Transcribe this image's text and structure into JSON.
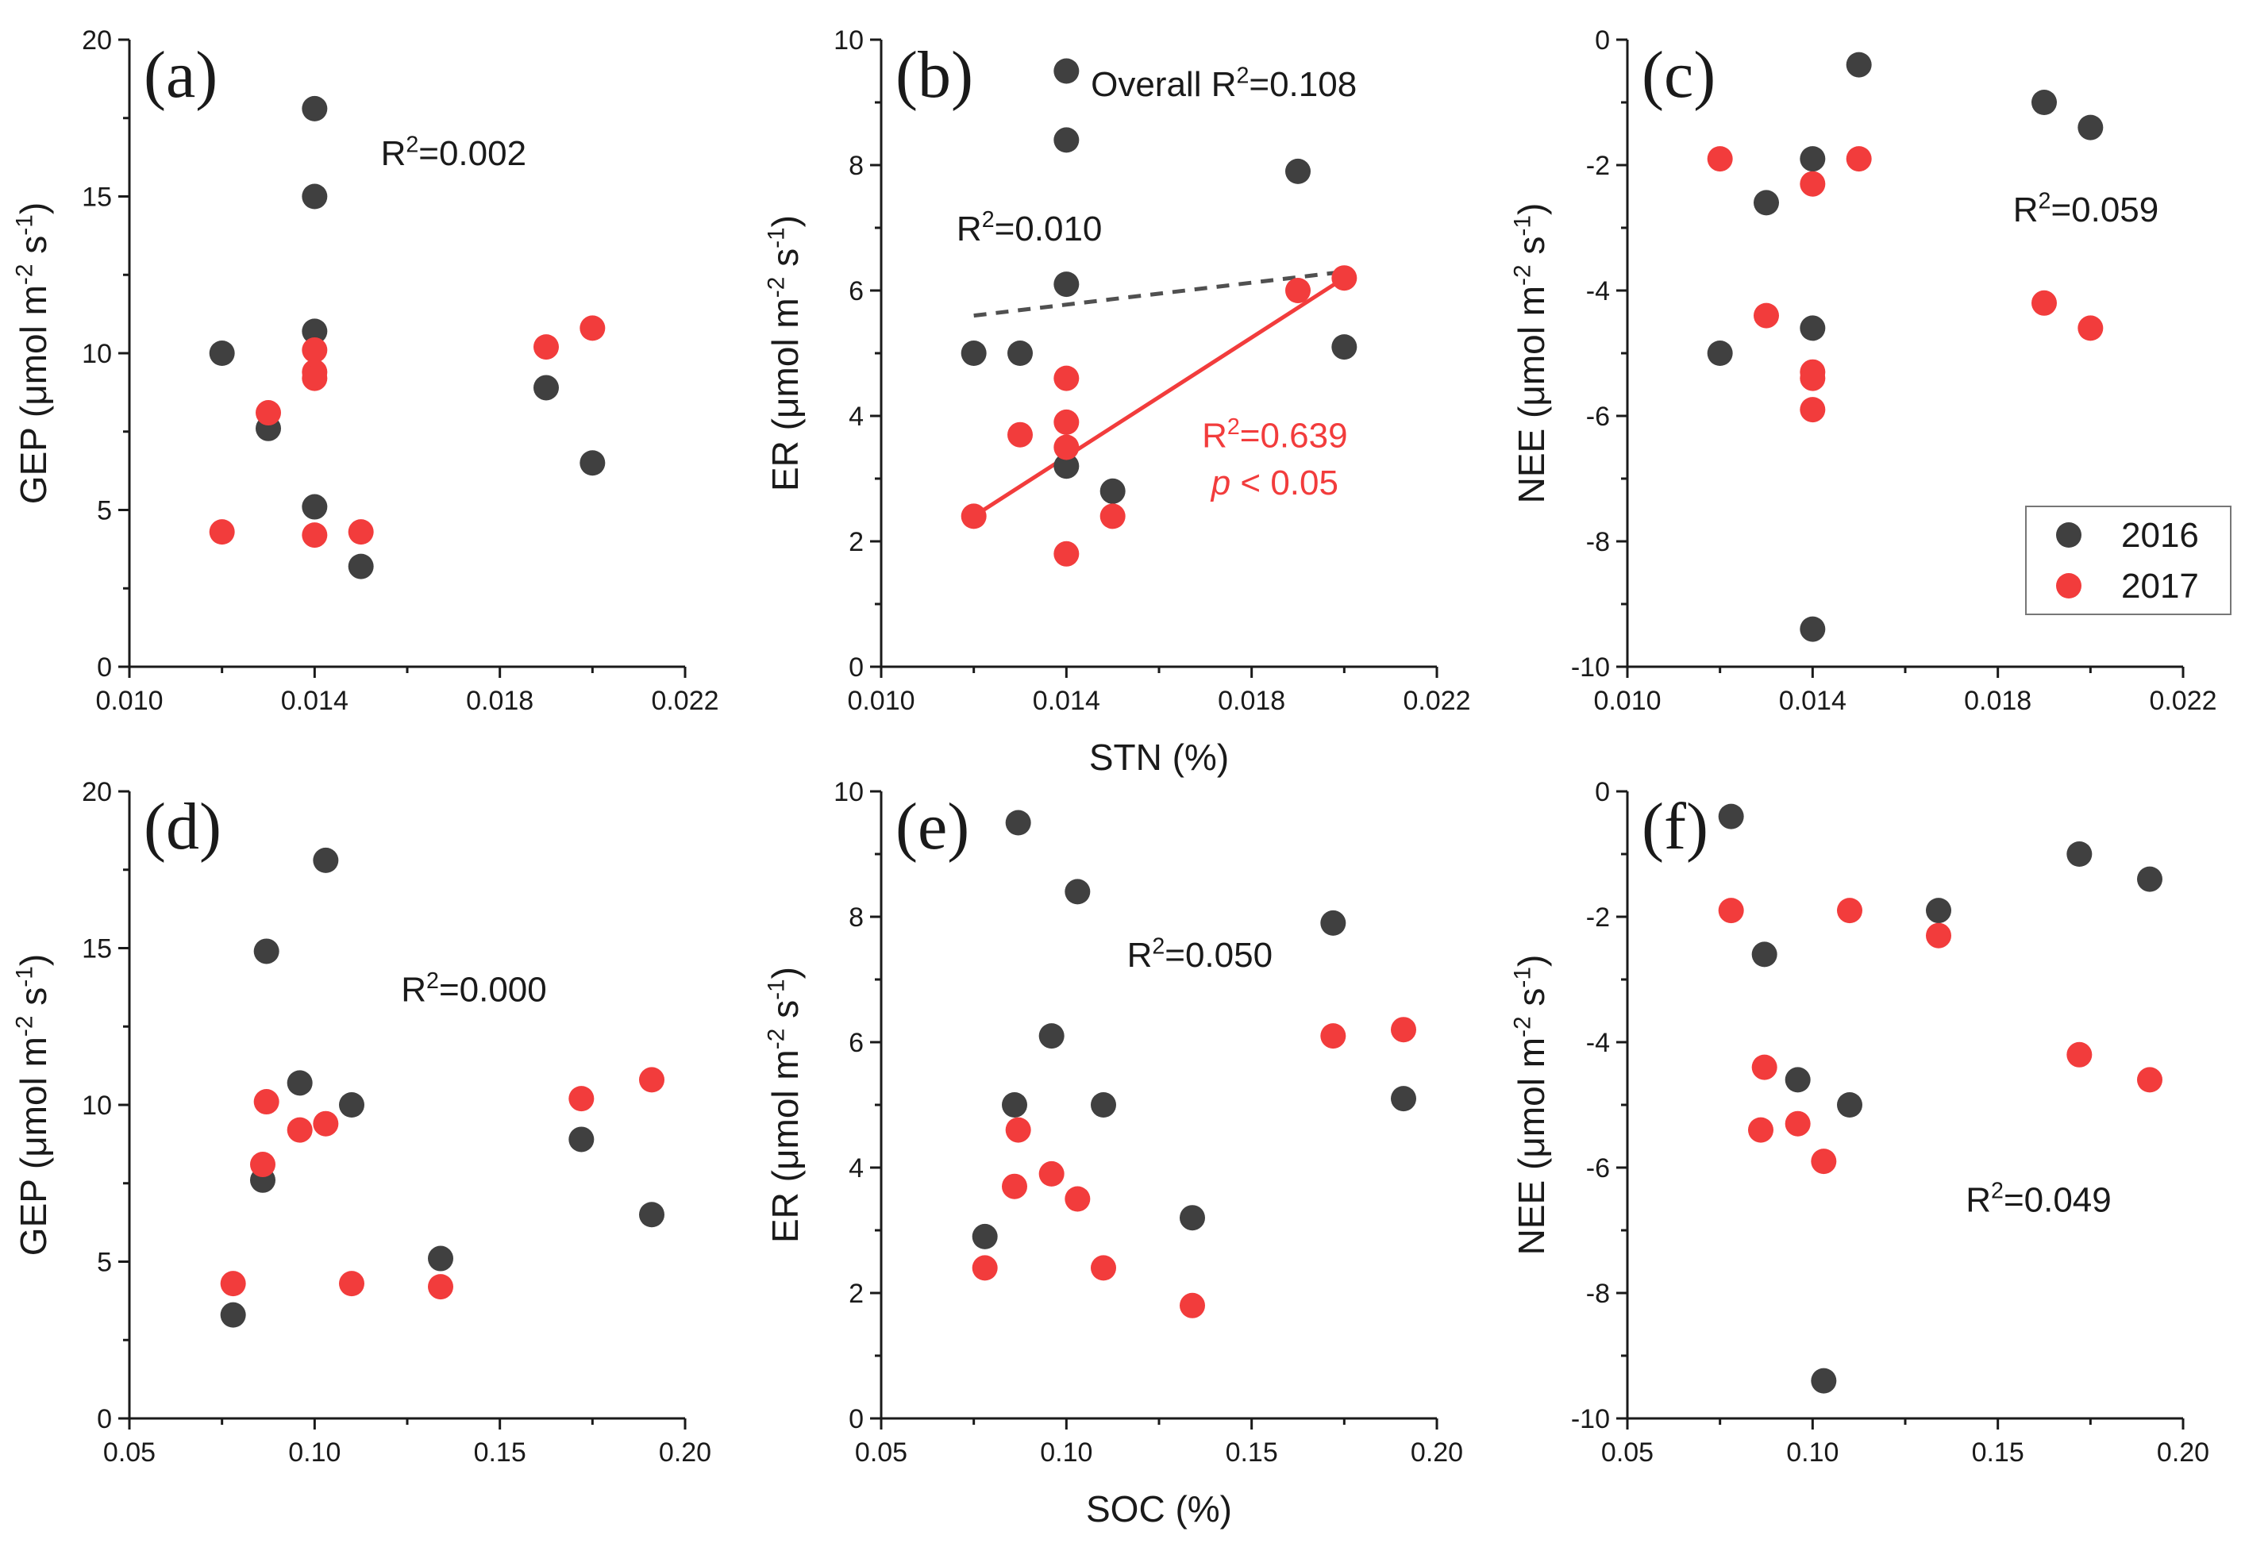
{
  "colors": {
    "series_2016": "#404040",
    "series_2017": "#f23c3c",
    "axis": "#1a1a1a",
    "fit_2017": "#f23c3c",
    "fit_overall": "#505050"
  },
  "legend": [
    {
      "label": "2016",
      "color": "#404040"
    },
    {
      "label": "2017",
      "color": "#f23c3c"
    }
  ],
  "shared": {
    "xlabel_top": "STN (%)",
    "xlabel_bottom": "SOC (%)"
  },
  "chart_data": [
    {
      "id": "a",
      "panel_label": "(a)",
      "type": "scatter",
      "xlabel": "",
      "ylabel": "GEP (μmol m⁻² s⁻¹)",
      "xlim": [
        0.01,
        0.022
      ],
      "ylim": [
        0,
        20
      ],
      "xticks": [
        0.01,
        0.014,
        0.018,
        0.022
      ],
      "xtick_labels": [
        "0.010",
        "0.014",
        "0.018",
        "0.022"
      ],
      "yticks": [
        0,
        5,
        10,
        15,
        20
      ],
      "ytick_labels": [
        "0",
        "5",
        "10",
        "15",
        "20"
      ],
      "annotations": [
        {
          "text": "R²=0.002",
          "color": "#1a1a1a",
          "x": 0.017,
          "y": 16.0
        }
      ],
      "series": [
        {
          "name": "2016",
          "color": "#404040",
          "x": [
            0.012,
            0.013,
            0.014,
            0.014,
            0.014,
            0.014,
            0.015,
            0.019,
            0.02
          ],
          "y": [
            10.0,
            7.6,
            17.8,
            15.0,
            10.7,
            5.1,
            3.2,
            8.9,
            6.5
          ]
        },
        {
          "name": "2017",
          "color": "#f23c3c",
          "x": [
            0.012,
            0.013,
            0.014,
            0.014,
            0.014,
            0.014,
            0.015,
            0.019,
            0.02
          ],
          "y": [
            4.3,
            8.1,
            10.1,
            9.4,
            9.2,
            4.2,
            4.3,
            10.2,
            10.8
          ]
        }
      ],
      "lines": []
    },
    {
      "id": "b",
      "panel_label": "(b)",
      "type": "scatter",
      "xlabel": "STN (%)",
      "ylabel": "ER (μmol m⁻² s⁻¹)",
      "xlim": [
        0.01,
        0.022
      ],
      "ylim": [
        0,
        10
      ],
      "xticks": [
        0.01,
        0.014,
        0.018,
        0.022
      ],
      "xtick_labels": [
        "0.010",
        "0.014",
        "0.018",
        "0.022"
      ],
      "yticks": [
        0,
        2,
        4,
        6,
        8,
        10
      ],
      "ytick_labels": [
        "0",
        "2",
        "4",
        "6",
        "8",
        "10"
      ],
      "annotations": [
        {
          "text": "Overall R²=0.108",
          "color": "#1a1a1a",
          "x": 0.0174,
          "y": 9.1
        },
        {
          "text": "R²=0.010",
          "color": "#1a1a1a",
          "x": 0.0132,
          "y": 6.8
        },
        {
          "text": "R²=0.639",
          "color": "#f23c3c",
          "x": 0.0185,
          "y": 3.5
        },
        {
          "text": "p < 0.05",
          "color": "#f23c3c",
          "x": 0.0185,
          "y": 2.75,
          "italic_prefix": "p"
        }
      ],
      "series": [
        {
          "name": "2016",
          "color": "#404040",
          "x": [
            0.012,
            0.013,
            0.014,
            0.014,
            0.014,
            0.014,
            0.015,
            0.019,
            0.02
          ],
          "y": [
            5.0,
            5.0,
            9.5,
            8.4,
            6.1,
            3.2,
            2.8,
            7.9,
            5.1
          ]
        },
        {
          "name": "2017",
          "color": "#f23c3c",
          "x": [
            0.012,
            0.013,
            0.014,
            0.014,
            0.014,
            0.014,
            0.015,
            0.019,
            0.02
          ],
          "y": [
            2.4,
            3.7,
            4.6,
            3.9,
            3.5,
            1.8,
            2.4,
            6.0,
            6.2
          ]
        }
      ],
      "lines": [
        {
          "name": "fit-overall",
          "style": "dashed",
          "color": "#505050",
          "x": [
            0.012,
            0.02
          ],
          "y": [
            5.6,
            6.3
          ]
        },
        {
          "name": "fit-2017",
          "style": "solid",
          "color": "#f23c3c",
          "x": [
            0.012,
            0.02
          ],
          "y": [
            2.4,
            6.2
          ]
        }
      ]
    },
    {
      "id": "c",
      "panel_label": "(c)",
      "type": "scatter",
      "xlabel": "",
      "ylabel": "NEE (μmol m⁻² s⁻¹)",
      "xlim": [
        0.01,
        0.022
      ],
      "ylim": [
        -10,
        0
      ],
      "xticks": [
        0.01,
        0.014,
        0.018,
        0.022
      ],
      "xtick_labels": [
        "0.010",
        "0.014",
        "0.018",
        "0.022"
      ],
      "yticks": [
        -10,
        -8,
        -6,
        -4,
        -2,
        0
      ],
      "ytick_labels": [
        "-10",
        "-8",
        "-6",
        "-4",
        "-2",
        "0"
      ],
      "annotations": [
        {
          "text": "R²=0.059",
          "color": "#1a1a1a",
          "x": 0.0199,
          "y": -2.9
        }
      ],
      "legend": true,
      "series": [
        {
          "name": "2016",
          "color": "#404040",
          "x": [
            0.012,
            0.013,
            0.014,
            0.014,
            0.014,
            0.015,
            0.019,
            0.02
          ],
          "y": [
            -5.0,
            -2.6,
            -1.9,
            -4.6,
            -9.4,
            -0.4,
            -1.0,
            -1.4
          ]
        },
        {
          "name": "2017",
          "color": "#f23c3c",
          "x": [
            0.012,
            0.013,
            0.014,
            0.014,
            0.014,
            0.014,
            0.015,
            0.019,
            0.02
          ],
          "y": [
            -1.9,
            -4.4,
            -2.3,
            -5.3,
            -5.4,
            -5.9,
            -1.9,
            -4.2,
            -4.6
          ]
        }
      ],
      "lines": []
    },
    {
      "id": "d",
      "panel_label": "(d)",
      "type": "scatter",
      "xlabel": "",
      "ylabel": "GEP (μmol m⁻² s⁻¹)",
      "xlim": [
        0.05,
        0.2
      ],
      "ylim": [
        0,
        20
      ],
      "xticks": [
        0.05,
        0.1,
        0.15,
        0.2
      ],
      "xtick_labels": [
        "0.05",
        "0.10",
        "0.15",
        "0.20"
      ],
      "yticks": [
        0,
        5,
        10,
        15,
        20
      ],
      "ytick_labels": [
        "0",
        "5",
        "10",
        "15",
        "20"
      ],
      "annotations": [
        {
          "text": "R²=0.000",
          "color": "#1a1a1a",
          "x": 0.143,
          "y": 13.3
        }
      ],
      "series": [
        {
          "name": "2016",
          "color": "#404040",
          "x": [
            0.078,
            0.086,
            0.087,
            0.096,
            0.103,
            0.11,
            0.134,
            0.172,
            0.191
          ],
          "y": [
            3.3,
            7.6,
            14.9,
            10.7,
            17.8,
            10.0,
            5.1,
            8.9,
            6.5
          ]
        },
        {
          "name": "2017",
          "color": "#f23c3c",
          "x": [
            0.078,
            0.086,
            0.087,
            0.096,
            0.103,
            0.11,
            0.134,
            0.172,
            0.191
          ],
          "y": [
            4.3,
            8.1,
            10.1,
            9.2,
            9.4,
            4.3,
            4.2,
            10.2,
            10.8
          ]
        }
      ],
      "lines": []
    },
    {
      "id": "e",
      "panel_label": "(e)",
      "type": "scatter",
      "xlabel": "SOC (%)",
      "ylabel": "ER (μmol m⁻² s⁻¹)",
      "xlim": [
        0.05,
        0.2
      ],
      "ylim": [
        0,
        10
      ],
      "xticks": [
        0.05,
        0.1,
        0.15,
        0.2
      ],
      "xtick_labels": [
        "0.05",
        "0.10",
        "0.15",
        "0.20"
      ],
      "yticks": [
        0,
        2,
        4,
        6,
        8,
        10
      ],
      "ytick_labels": [
        "0",
        "2",
        "4",
        "6",
        "8",
        "10"
      ],
      "annotations": [
        {
          "text": "R²=0.050",
          "color": "#1a1a1a",
          "x": 0.136,
          "y": 7.2
        }
      ],
      "series": [
        {
          "name": "2016",
          "color": "#404040",
          "x": [
            0.078,
            0.086,
            0.087,
            0.096,
            0.103,
            0.11,
            0.134,
            0.172,
            0.191
          ],
          "y": [
            2.9,
            5.0,
            9.5,
            6.1,
            8.4,
            5.0,
            3.2,
            7.9,
            5.1
          ]
        },
        {
          "name": "2017",
          "color": "#f23c3c",
          "x": [
            0.078,
            0.086,
            0.087,
            0.096,
            0.103,
            0.11,
            0.134,
            0.172,
            0.191
          ],
          "y": [
            2.4,
            3.7,
            4.6,
            3.9,
            3.5,
            2.4,
            1.8,
            6.1,
            6.2
          ]
        }
      ],
      "lines": []
    },
    {
      "id": "f",
      "panel_label": "(f)",
      "type": "scatter",
      "xlabel": "",
      "ylabel": "NEE (μmol m⁻² s⁻¹)",
      "xlim": [
        0.05,
        0.2
      ],
      "ylim": [
        -10,
        0
      ],
      "xticks": [
        0.05,
        0.1,
        0.15,
        0.2
      ],
      "xtick_labels": [
        "0.05",
        "0.10",
        "0.15",
        "0.20"
      ],
      "yticks": [
        -10,
        -8,
        -6,
        -4,
        -2,
        0
      ],
      "ytick_labels": [
        "-10",
        "-8",
        "-6",
        "-4",
        "-2",
        "0"
      ],
      "annotations": [
        {
          "text": "R²=0.049",
          "color": "#1a1a1a",
          "x": 0.161,
          "y": -6.7
        }
      ],
      "series": [
        {
          "name": "2016",
          "color": "#404040",
          "x": [
            0.078,
            0.087,
            0.096,
            0.103,
            0.11,
            0.134,
            0.172,
            0.191
          ],
          "y": [
            -0.4,
            -2.6,
            -4.6,
            -9.4,
            -5.0,
            -1.9,
            -1.0,
            -1.4
          ]
        },
        {
          "name": "2017",
          "color": "#f23c3c",
          "x": [
            0.078,
            0.086,
            0.087,
            0.096,
            0.103,
            0.11,
            0.134,
            0.172,
            0.191
          ],
          "y": [
            -1.9,
            -5.4,
            -4.4,
            -5.3,
            -5.9,
            -1.9,
            -2.3,
            -4.2,
            -4.6
          ]
        }
      ],
      "lines": []
    }
  ]
}
